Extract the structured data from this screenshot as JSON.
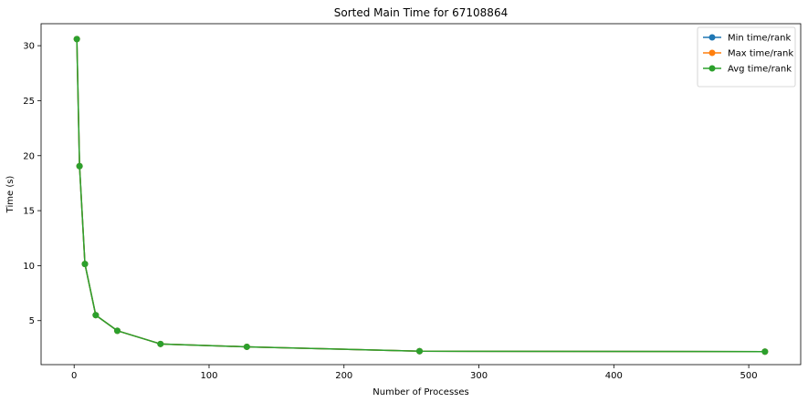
{
  "chart_data": {
    "type": "line",
    "title": "Sorted Main Time for 67108864",
    "xlabel": "Number of Processes",
    "ylabel": "Time (s)",
    "xlim": [
      -24.5,
      538.5
    ],
    "ylim": [
      1.0,
      32.0
    ],
    "xticks": [
      0,
      100,
      200,
      300,
      400,
      500
    ],
    "yticks": [
      5,
      10,
      15,
      20,
      25,
      30
    ],
    "grid": false,
    "legend_position": "top-right",
    "x": [
      2,
      4,
      8,
      16,
      32,
      64,
      128,
      256,
      512
    ],
    "series": [
      {
        "name": "Min time/rank",
        "color": "#1f77b4",
        "marker": "circle",
        "values": [
          30.6,
          19.05,
          10.15,
          5.5,
          4.08,
          2.88,
          2.62,
          2.22,
          2.18
        ]
      },
      {
        "name": "Max time/rank",
        "color": "#ff7f0e",
        "marker": "circle",
        "values": [
          30.6,
          19.05,
          10.15,
          5.5,
          4.08,
          2.88,
          2.62,
          2.22,
          2.18
        ]
      },
      {
        "name": "Avg time/rank",
        "color": "#2ca02c",
        "marker": "circle",
        "values": [
          30.6,
          19.05,
          10.15,
          5.5,
          4.08,
          2.88,
          2.62,
          2.22,
          2.18
        ]
      }
    ]
  }
}
